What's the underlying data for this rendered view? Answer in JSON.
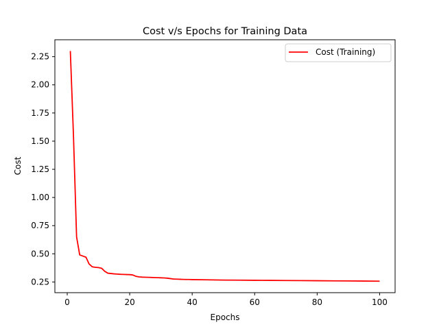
{
  "chart_data": {
    "type": "line",
    "title": "Cost v/s Epochs for Training Data",
    "xlabel": "Epochs",
    "ylabel": "Cost",
    "xlim": [
      -3.95,
      104.95
    ],
    "ylim": [
      0.155,
      2.4
    ],
    "xticks": [
      0,
      20,
      40,
      60,
      80,
      100
    ],
    "yticks": [
      0.25,
      0.5,
      0.75,
      1.0,
      1.25,
      1.5,
      1.75,
      2.0,
      2.25
    ],
    "ytick_labels": [
      "0.25",
      "0.50",
      "0.75",
      "1.00",
      "1.25",
      "1.50",
      "1.75",
      "2.00",
      "2.25"
    ],
    "grid": false,
    "legend_position": "top-right",
    "series": [
      {
        "name": "Cost (Training)",
        "color": "#ff0000",
        "x": [
          1,
          2,
          3,
          4,
          5,
          6,
          7,
          8,
          9,
          10,
          11,
          12,
          13,
          14,
          15,
          16,
          17,
          18,
          19,
          20,
          21,
          22,
          23,
          24,
          25,
          26,
          27,
          28,
          29,
          30,
          31,
          32,
          33,
          34,
          35,
          36,
          37,
          38,
          39,
          40,
          45,
          50,
          55,
          60,
          65,
          70,
          75,
          80,
          85,
          90,
          95,
          100
        ],
        "y": [
          2.3,
          1.55,
          0.65,
          0.49,
          0.48,
          0.47,
          0.41,
          0.385,
          0.38,
          0.378,
          0.372,
          0.345,
          0.328,
          0.325,
          0.322,
          0.32,
          0.318,
          0.317,
          0.316,
          0.315,
          0.312,
          0.3,
          0.295,
          0.293,
          0.292,
          0.291,
          0.29,
          0.289,
          0.288,
          0.287,
          0.286,
          0.284,
          0.28,
          0.276,
          0.275,
          0.274,
          0.273,
          0.272,
          0.272,
          0.271,
          0.269,
          0.267,
          0.266,
          0.265,
          0.264,
          0.263,
          0.262,
          0.261,
          0.26,
          0.259,
          0.258,
          0.257
        ]
      }
    ]
  }
}
